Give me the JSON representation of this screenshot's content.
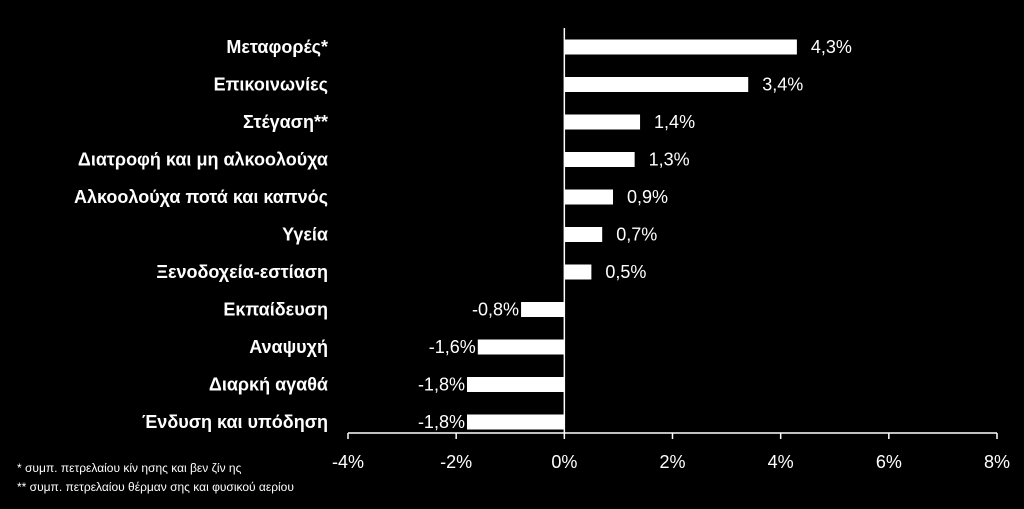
{
  "chart_data": {
    "type": "bar",
    "orientation": "horizontal",
    "categories": [
      "Μεταφορές*",
      "Επικοινωνίες",
      "Στέγαση**",
      "Διατροφή και μη αλκοολούχα",
      "Αλκοολούχα ποτά και καπνός",
      "Υγεία",
      "Ξενοδοχεία-εστίαση",
      "Εκπαίδευση",
      "Αναψυχή",
      "Διαρκή αγαθά",
      "Ένδυση και υπόδηση"
    ],
    "values": [
      4.3,
      3.4,
      1.4,
      1.3,
      0.9,
      0.7,
      0.5,
      -0.8,
      -1.6,
      -1.8,
      -1.8
    ],
    "data_labels": [
      "4,3%",
      "3,4%",
      "1,4%",
      "1,3%",
      "0,9%",
      "0,7%",
      "0,5%",
      "-0,8%",
      "-1,6%",
      "-1,8%",
      "-1,8%"
    ],
    "xlim": [
      -4,
      8
    ],
    "x_ticks": [
      -4,
      -2,
      0,
      2,
      4,
      6,
      8
    ],
    "x_tick_labels": [
      "-4%",
      "-2%",
      "0%",
      "2%",
      "4%",
      "6%",
      "8%"
    ],
    "grid": false,
    "colors": {
      "background": "#000000",
      "bar": "#ffffff",
      "text": "#ffffff",
      "axis": "#ffffff"
    }
  },
  "footnotes": [
    "* συμπ. πετρελαίου κίν ησης και βεν ζίν ης",
    "** συμπ. πετρελαίου θέρμαν σης και φυσικού αερίου"
  ]
}
